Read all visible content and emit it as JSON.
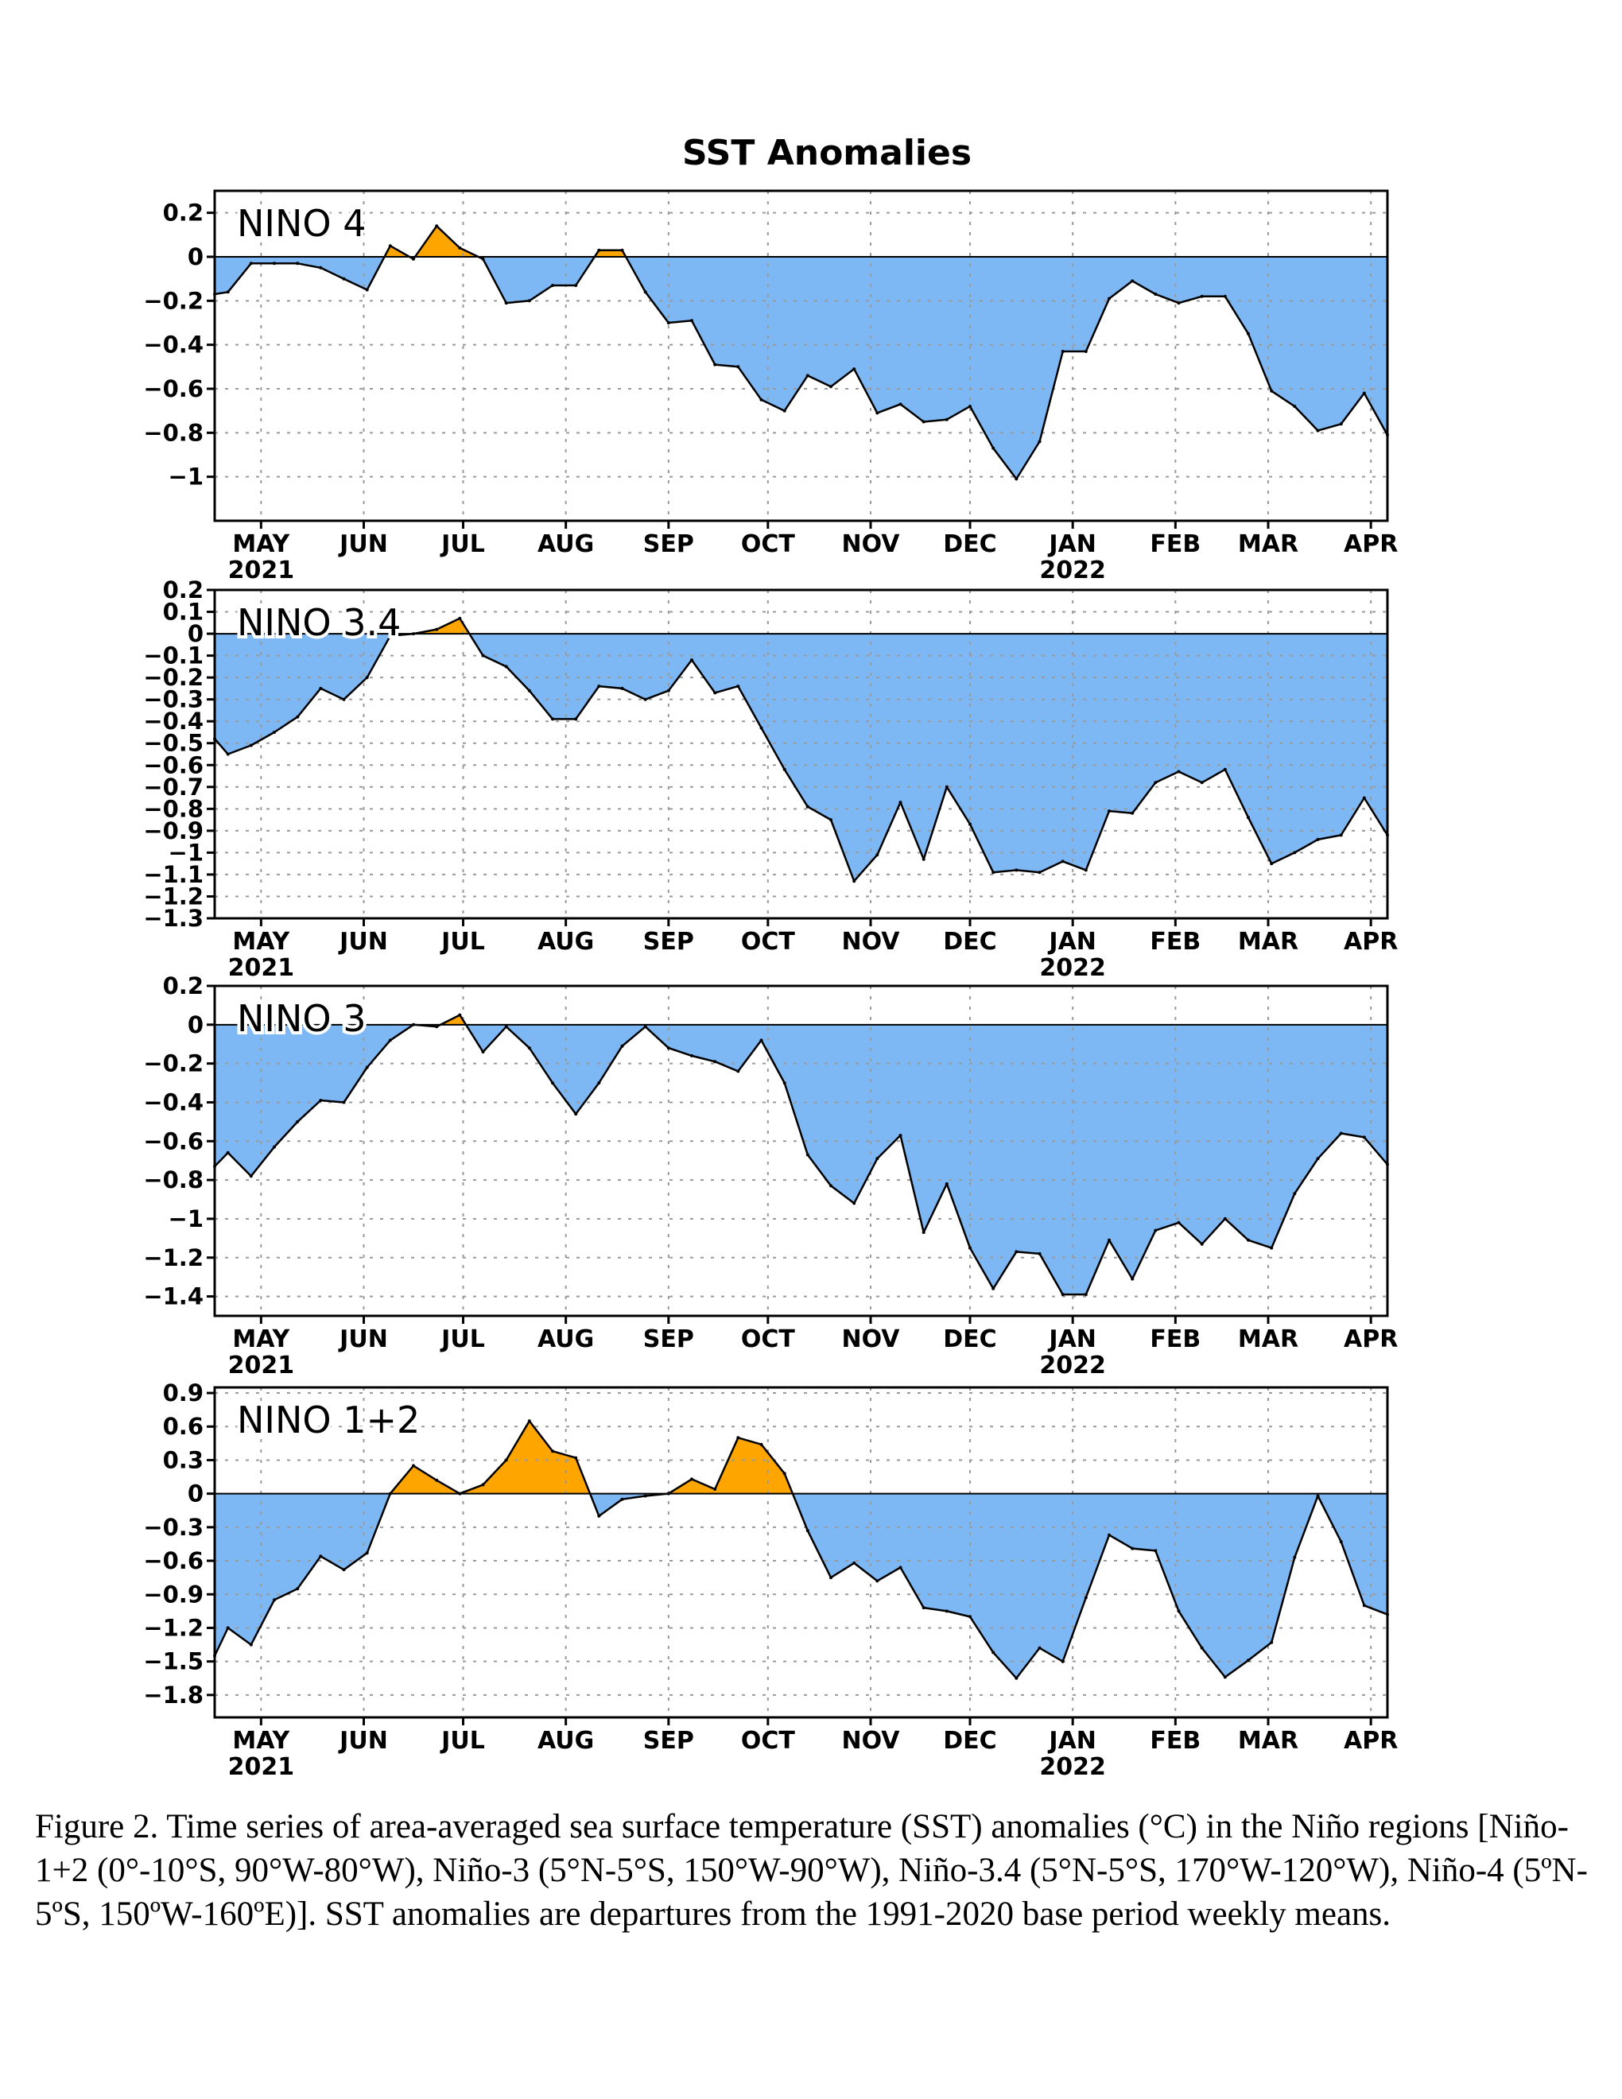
{
  "figure": {
    "title": "SST Anomalies",
    "caption": "Figure 2. Time series of area-averaged sea surface temperature (SST) anomalies (°C) in the Niño regions [Niño-1+2 (0°-10°S, 90°W-80°W), Niño-3 (5°N-5°S, 150°W-90°W), Niño-3.4 (5°N-5°S, 170°W-120°W), Niño-4 (5ºN-5ºS, 150ºW-160ºE)]. SST anomalies are departures from the 1991-2020 base period weekly means."
  },
  "colors": {
    "positive_fill": "#FFA500",
    "negative_fill": "#7DB8F5",
    "line": "#000000"
  },
  "chart_data": [
    {
      "type": "area",
      "region_label": "NINO 4",
      "x_months": [
        "MAY",
        "JUN",
        "JUL",
        "AUG",
        "SEP",
        "OCT",
        "NOV",
        "DEC",
        "JAN",
        "FEB",
        "MAR",
        "APR"
      ],
      "x_years": {
        "MAY": "2021",
        "JAN": "2022"
      },
      "x_range": [
        "2021-04-17",
        "2022-04-06"
      ],
      "ylim": [
        -1.2,
        0.3
      ],
      "yticks": [
        0.2,
        0,
        -0.2,
        -0.4,
        -0.6,
        -0.8,
        -1
      ],
      "ytick_labels": [
        "0.2",
        "0",
        "−0.2",
        "−0.4",
        "−0.6",
        "−0.8",
        "−1"
      ],
      "grid": true,
      "x": [
        "2021-04-17",
        "2021-04-21",
        "2021-04-28",
        "2021-05-05",
        "2021-05-12",
        "2021-05-19",
        "2021-05-26",
        "2021-06-02",
        "2021-06-09",
        "2021-06-16",
        "2021-06-23",
        "2021-06-30",
        "2021-07-07",
        "2021-07-14",
        "2021-07-21",
        "2021-07-28",
        "2021-08-04",
        "2021-08-11",
        "2021-08-18",
        "2021-08-25",
        "2021-09-01",
        "2021-09-08",
        "2021-09-15",
        "2021-09-22",
        "2021-09-29",
        "2021-10-06",
        "2021-10-13",
        "2021-10-20",
        "2021-10-27",
        "2021-11-03",
        "2021-11-10",
        "2021-11-17",
        "2021-11-24",
        "2021-12-01",
        "2021-12-08",
        "2021-12-15",
        "2021-12-22",
        "2021-12-29",
        "2022-01-05",
        "2022-01-12",
        "2022-01-19",
        "2022-01-26",
        "2022-02-02",
        "2022-02-09",
        "2022-02-16",
        "2022-02-23",
        "2022-03-02",
        "2022-03-09",
        "2022-03-16",
        "2022-03-23",
        "2022-03-30",
        "2022-04-06"
      ],
      "values": [
        -0.17,
        -0.16,
        -0.03,
        -0.03,
        -0.03,
        -0.05,
        -0.1,
        -0.15,
        0.05,
        -0.01,
        0.14,
        0.04,
        -0.01,
        -0.21,
        -0.2,
        -0.13,
        -0.13,
        0.03,
        0.03,
        -0.16,
        -0.3,
        -0.29,
        -0.49,
        -0.5,
        -0.65,
        -0.7,
        -0.54,
        -0.59,
        -0.51,
        -0.71,
        -0.67,
        -0.75,
        -0.74,
        -0.68,
        -0.87,
        -1.01,
        -0.84,
        -0.43,
        -0.43,
        -0.19,
        -0.11,
        -0.17,
        -0.21,
        -0.18,
        -0.18,
        -0.35,
        -0.61,
        -0.68,
        -0.79,
        -0.76,
        -0.62,
        -0.81
      ]
    },
    {
      "type": "area",
      "region_label": "NINO 3.4",
      "x_months": [
        "MAY",
        "JUN",
        "JUL",
        "AUG",
        "SEP",
        "OCT",
        "NOV",
        "DEC",
        "JAN",
        "FEB",
        "MAR",
        "APR"
      ],
      "x_years": {
        "MAY": "2021",
        "JAN": "2022"
      },
      "x_range": [
        "2021-04-17",
        "2022-04-06"
      ],
      "ylim": [
        -1.3,
        0.2
      ],
      "yticks": [
        0.2,
        0.1,
        0,
        -0.1,
        -0.2,
        -0.3,
        -0.4,
        -0.5,
        -0.6,
        -0.7,
        -0.8,
        -0.9,
        -1,
        -1.1,
        -1.2,
        -1.3
      ],
      "ytick_labels": [
        "0.2",
        "0.1",
        "0",
        "−0.1",
        "−0.2",
        "−0.3",
        "−0.4",
        "−0.5",
        "−0.6",
        "−0.7",
        "−0.8",
        "−0.9",
        "−1",
        "−1.1",
        "−1.2",
        "−1.3"
      ],
      "grid": true,
      "x": [
        "2021-04-17",
        "2021-04-21",
        "2021-04-28",
        "2021-05-05",
        "2021-05-12",
        "2021-05-19",
        "2021-05-26",
        "2021-06-02",
        "2021-06-09",
        "2021-06-16",
        "2021-06-23",
        "2021-06-30",
        "2021-07-07",
        "2021-07-14",
        "2021-07-21",
        "2021-07-28",
        "2021-08-04",
        "2021-08-11",
        "2021-08-18",
        "2021-08-25",
        "2021-09-01",
        "2021-09-08",
        "2021-09-15",
        "2021-09-22",
        "2021-09-29",
        "2021-10-06",
        "2021-10-13",
        "2021-10-20",
        "2021-10-27",
        "2021-11-03",
        "2021-11-10",
        "2021-11-17",
        "2021-11-24",
        "2021-12-01",
        "2021-12-08",
        "2021-12-15",
        "2021-12-22",
        "2021-12-29",
        "2022-01-05",
        "2022-01-12",
        "2022-01-19",
        "2022-01-26",
        "2022-02-02",
        "2022-02-09",
        "2022-02-16",
        "2022-02-23",
        "2022-03-02",
        "2022-03-09",
        "2022-03-16",
        "2022-03-23",
        "2022-03-30",
        "2022-04-06"
      ],
      "values": [
        -0.48,
        -0.55,
        -0.51,
        -0.45,
        -0.38,
        -0.25,
        -0.3,
        -0.2,
        -0.01,
        0.0,
        0.02,
        0.07,
        -0.1,
        -0.15,
        -0.26,
        -0.39,
        -0.39,
        -0.24,
        -0.25,
        -0.3,
        -0.26,
        -0.12,
        -0.27,
        -0.24,
        -0.43,
        -0.62,
        -0.79,
        -0.85,
        -1.13,
        -1.01,
        -0.77,
        -1.03,
        -0.7,
        -0.87,
        -1.09,
        -1.08,
        -1.09,
        -1.04,
        -1.08,
        -0.81,
        -0.82,
        -0.68,
        -0.63,
        -0.68,
        -0.62,
        -0.84,
        -1.05,
        -1.0,
        -0.94,
        -0.92,
        -0.75,
        -0.92
      ]
    },
    {
      "type": "area",
      "region_label": "NINO 3",
      "x_months": [
        "MAY",
        "JUN",
        "JUL",
        "AUG",
        "SEP",
        "OCT",
        "NOV",
        "DEC",
        "JAN",
        "FEB",
        "MAR",
        "APR"
      ],
      "x_years": {
        "MAY": "2021",
        "JAN": "2022"
      },
      "x_range": [
        "2021-04-17",
        "2022-04-06"
      ],
      "ylim": [
        -1.5,
        0.2
      ],
      "yticks": [
        0.2,
        0,
        -0.2,
        -0.4,
        -0.6,
        -0.8,
        -1,
        -1.2,
        -1.4
      ],
      "ytick_labels": [
        "0.2",
        "0",
        "−0.2",
        "−0.4",
        "−0.6",
        "−0.8",
        "−1",
        "−1.2",
        "−1.4"
      ],
      "grid": true,
      "x": [
        "2021-04-17",
        "2021-04-21",
        "2021-04-28",
        "2021-05-05",
        "2021-05-12",
        "2021-05-19",
        "2021-05-26",
        "2021-06-02",
        "2021-06-09",
        "2021-06-16",
        "2021-06-23",
        "2021-06-30",
        "2021-07-07",
        "2021-07-14",
        "2021-07-21",
        "2021-07-28",
        "2021-08-04",
        "2021-08-11",
        "2021-08-18",
        "2021-08-25",
        "2021-09-01",
        "2021-09-08",
        "2021-09-15",
        "2021-09-22",
        "2021-09-29",
        "2021-10-06",
        "2021-10-13",
        "2021-10-20",
        "2021-10-27",
        "2021-11-03",
        "2021-11-10",
        "2021-11-17",
        "2021-11-24",
        "2021-12-01",
        "2021-12-08",
        "2021-12-15",
        "2021-12-22",
        "2021-12-29",
        "2022-01-05",
        "2022-01-12",
        "2022-01-19",
        "2022-01-26",
        "2022-02-02",
        "2022-02-09",
        "2022-02-16",
        "2022-02-23",
        "2022-03-02",
        "2022-03-09",
        "2022-03-16",
        "2022-03-23",
        "2022-03-30",
        "2022-04-06"
      ],
      "values": [
        -0.73,
        -0.66,
        -0.78,
        -0.63,
        -0.5,
        -0.39,
        -0.4,
        -0.22,
        -0.08,
        0.0,
        -0.01,
        0.05,
        -0.14,
        -0.01,
        -0.12,
        -0.3,
        -0.46,
        -0.3,
        -0.11,
        -0.01,
        -0.12,
        -0.16,
        -0.19,
        -0.24,
        -0.08,
        -0.3,
        -0.67,
        -0.83,
        -0.92,
        -0.69,
        -0.57,
        -1.07,
        -0.82,
        -1.15,
        -1.36,
        -1.17,
        -1.18,
        -1.39,
        -1.39,
        -1.11,
        -1.31,
        -1.06,
        -1.02,
        -1.13,
        -1.0,
        -1.11,
        -1.15,
        -0.87,
        -0.69,
        -0.56,
        -0.58,
        -0.72
      ]
    },
    {
      "type": "area",
      "region_label": "NINO 1+2",
      "x_months": [
        "MAY",
        "JUN",
        "JUL",
        "AUG",
        "SEP",
        "OCT",
        "NOV",
        "DEC",
        "JAN",
        "FEB",
        "MAR",
        "APR"
      ],
      "x_years": {
        "MAY": "2021",
        "JAN": "2022"
      },
      "x_range": [
        "2021-04-17",
        "2022-04-06"
      ],
      "ylim": [
        -2.0,
        0.95
      ],
      "yticks": [
        0.9,
        0.6,
        0.3,
        0,
        -0.3,
        -0.6,
        -0.9,
        -1.2,
        -1.5,
        -1.8
      ],
      "ytick_labels": [
        "0.9",
        "0.6",
        "0.3",
        "0",
        "−0.3",
        "−0.6",
        "−0.9",
        "−1.2",
        "−1.5",
        "−1.8"
      ],
      "grid": true,
      "x": [
        "2021-04-17",
        "2021-04-21",
        "2021-04-28",
        "2021-05-05",
        "2021-05-12",
        "2021-05-19",
        "2021-05-26",
        "2021-06-02",
        "2021-06-09",
        "2021-06-16",
        "2021-06-23",
        "2021-06-30",
        "2021-07-07",
        "2021-07-14",
        "2021-07-21",
        "2021-07-28",
        "2021-08-04",
        "2021-08-11",
        "2021-08-18",
        "2021-08-25",
        "2021-09-01",
        "2021-09-08",
        "2021-09-15",
        "2021-09-22",
        "2021-09-29",
        "2021-10-06",
        "2021-10-13",
        "2021-10-20",
        "2021-10-27",
        "2021-11-03",
        "2021-11-10",
        "2021-11-17",
        "2021-11-24",
        "2021-12-01",
        "2021-12-08",
        "2021-12-15",
        "2021-12-22",
        "2021-12-29",
        "2022-01-05",
        "2022-01-12",
        "2022-01-19",
        "2022-01-26",
        "2022-02-02",
        "2022-02-09",
        "2022-02-16",
        "2022-02-23",
        "2022-03-02",
        "2022-03-09",
        "2022-03-16",
        "2022-03-23",
        "2022-03-30",
        "2022-04-06"
      ],
      "values": [
        -1.45,
        -1.2,
        -1.35,
        -0.95,
        -0.85,
        -0.56,
        -0.68,
        -0.53,
        0.0,
        0.25,
        0.12,
        0.0,
        0.08,
        0.3,
        0.65,
        0.38,
        0.32,
        -0.2,
        -0.05,
        -0.02,
        0.0,
        0.13,
        0.04,
        0.5,
        0.44,
        0.18,
        -0.33,
        -0.75,
        -0.62,
        -0.78,
        -0.66,
        -1.02,
        -1.05,
        -1.1,
        -1.42,
        -1.65,
        -1.38,
        -1.5,
        -0.93,
        -0.37,
        -0.49,
        -0.51,
        -1.05,
        -1.38,
        -1.64,
        -1.49,
        -1.33,
        -0.57,
        -0.02,
        -0.43,
        -1.0,
        -1.08
      ]
    }
  ]
}
